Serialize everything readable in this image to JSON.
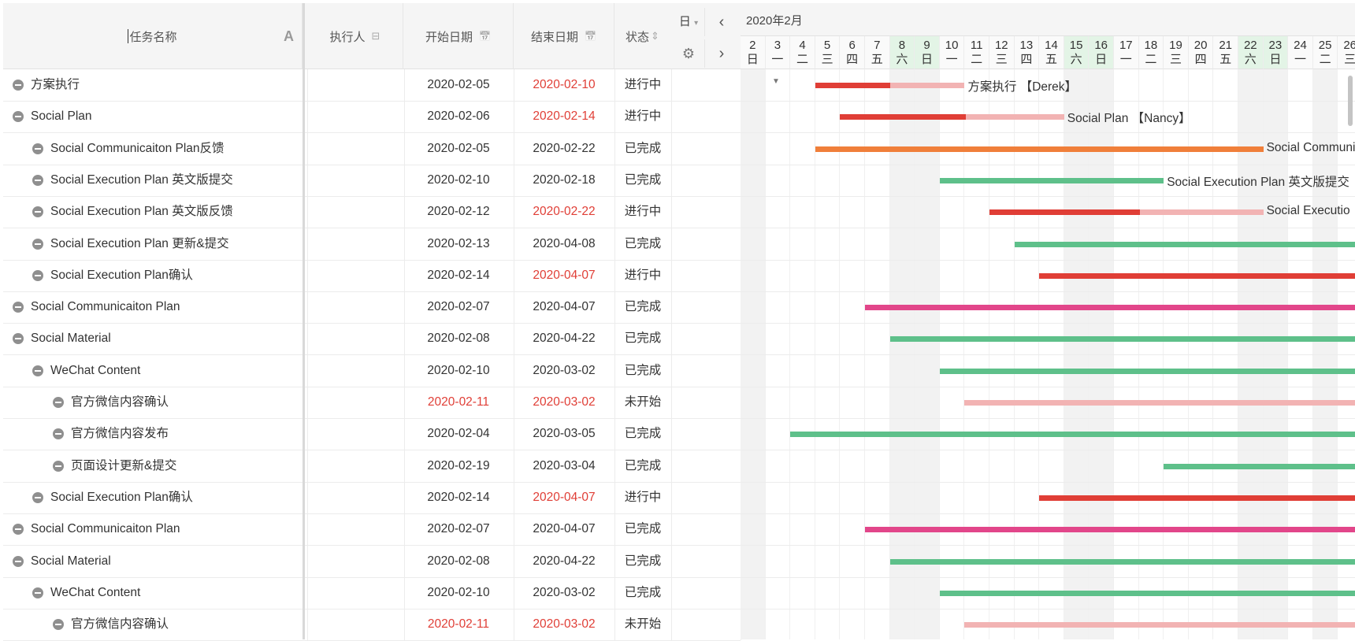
{
  "columns": {
    "name": "任务名称",
    "owner": "执行人",
    "start": "开始日期",
    "end": "结束日期",
    "status": "状态"
  },
  "icons": {
    "text_format": "A",
    "owner": "⊟",
    "calendar": "📅",
    "sort": "⇕",
    "view_caret": "▾",
    "prev": "‹",
    "next": "›",
    "gear": "⚙",
    "gantt_down": "▼"
  },
  "controls": {
    "view_label": "日"
  },
  "colors": {
    "in_progress": "#e03e36",
    "in_progress_light": "#f2b3b3",
    "done_green": "#5ec08a",
    "orange": "#f07f3a",
    "pink": "#e2468a"
  },
  "gantt": {
    "month_label": "2020年2月",
    "days": [
      {
        "d": "2",
        "w": "日"
      },
      {
        "d": "3",
        "w": "一"
      },
      {
        "d": "4",
        "w": "二"
      },
      {
        "d": "5",
        "w": "三"
      },
      {
        "d": "6",
        "w": "四"
      },
      {
        "d": "7",
        "w": "五"
      },
      {
        "d": "8",
        "w": "六"
      },
      {
        "d": "9",
        "w": "日"
      },
      {
        "d": "10",
        "w": "一"
      },
      {
        "d": "11",
        "w": "二"
      },
      {
        "d": "12",
        "w": "三"
      },
      {
        "d": "13",
        "w": "四"
      },
      {
        "d": "14",
        "w": "五"
      },
      {
        "d": "15",
        "w": "六"
      },
      {
        "d": "16",
        "w": "日"
      },
      {
        "d": "17",
        "w": "一"
      },
      {
        "d": "18",
        "w": "二"
      },
      {
        "d": "19",
        "w": "三"
      },
      {
        "d": "20",
        "w": "四"
      },
      {
        "d": "21",
        "w": "五"
      },
      {
        "d": "22",
        "w": "六"
      },
      {
        "d": "23",
        "w": "日"
      },
      {
        "d": "24",
        "w": "一"
      },
      {
        "d": "25",
        "w": "二"
      },
      {
        "d": "26",
        "w": "三"
      }
    ],
    "weekend_days": [
      "8",
      "9",
      "15",
      "16",
      "22",
      "23"
    ]
  },
  "tasks": [
    {
      "name": "方案执行",
      "level": 0,
      "start": "2020-02-05",
      "end": "2020-02-10",
      "end_red": true,
      "start_red": false,
      "status": "进行中",
      "label": "方案执行 【Derek】",
      "progress": 0.5
    },
    {
      "name": "Social Plan",
      "level": 0,
      "start": "2020-02-06",
      "end": "2020-02-14",
      "end_red": true,
      "start_red": false,
      "status": "进行中",
      "label": "Social Plan 【Nancy】",
      "progress": 0.56
    },
    {
      "name": "Social Communicaiton Plan反馈",
      "level": 1,
      "start": "2020-02-05",
      "end": "2020-02-22",
      "end_red": false,
      "start_red": false,
      "status": "已完成",
      "label": "Social Communi",
      "color": "orange"
    },
    {
      "name": "Social Execution Plan 英文版提交",
      "level": 1,
      "start": "2020-02-10",
      "end": "2020-02-18",
      "end_red": false,
      "start_red": false,
      "status": "已完成",
      "label": "Social Execution Plan 英文版提交",
      "color": "green"
    },
    {
      "name": "Social Execution Plan 英文版反馈",
      "level": 1,
      "start": "2020-02-12",
      "end": "2020-02-22",
      "end_red": true,
      "start_red": false,
      "status": "进行中",
      "label": "Social Executio",
      "progress": 0.55
    },
    {
      "name": "Social Execution Plan 更新&提交",
      "level": 1,
      "start": "2020-02-13",
      "end": "2020-04-08",
      "end_red": false,
      "start_red": false,
      "status": "已完成",
      "label": "",
      "color": "green"
    },
    {
      "name": "Social Execution Plan确认",
      "level": 1,
      "start": "2020-02-14",
      "end": "2020-04-07",
      "end_red": true,
      "start_red": false,
      "status": "进行中",
      "label": "",
      "color": "red"
    },
    {
      "name": "Social Communicaiton Plan",
      "level": 0,
      "start": "2020-02-07",
      "end": "2020-04-07",
      "end_red": false,
      "start_red": false,
      "status": "已完成",
      "label": "",
      "color": "pink"
    },
    {
      "name": "Social Material",
      "level": 0,
      "start": "2020-02-08",
      "end": "2020-04-22",
      "end_red": false,
      "start_red": false,
      "status": "已完成",
      "label": "",
      "color": "green"
    },
    {
      "name": "WeChat Content",
      "level": 1,
      "start": "2020-02-10",
      "end": "2020-03-02",
      "end_red": false,
      "start_red": false,
      "status": "已完成",
      "label": "",
      "color": "green"
    },
    {
      "name": "官方微信内容确认",
      "level": 2,
      "start": "2020-02-11",
      "end": "2020-03-02",
      "end_red": true,
      "start_red": true,
      "status": "未开始",
      "label": "",
      "color": "light"
    },
    {
      "name": "官方微信内容发布",
      "level": 2,
      "start": "2020-02-04",
      "end": "2020-03-05",
      "end_red": false,
      "start_red": false,
      "status": "已完成",
      "label": "",
      "color": "green"
    },
    {
      "name": "页面设计更新&提交",
      "level": 2,
      "start": "2020-02-19",
      "end": "2020-03-04",
      "end_red": false,
      "start_red": false,
      "status": "已完成",
      "label": "",
      "color": "green"
    },
    {
      "name": "Social Execution Plan确认",
      "level": 1,
      "start": "2020-02-14",
      "end": "2020-04-07",
      "end_red": true,
      "start_red": false,
      "status": "进行中",
      "label": "",
      "color": "red"
    },
    {
      "name": "Social Communicaiton Plan",
      "level": 0,
      "start": "2020-02-07",
      "end": "2020-04-07",
      "end_red": false,
      "start_red": false,
      "status": "已完成",
      "label": "",
      "color": "pink"
    },
    {
      "name": "Social Material",
      "level": 0,
      "start": "2020-02-08",
      "end": "2020-04-22",
      "end_red": false,
      "start_red": false,
      "status": "已完成",
      "label": "",
      "color": "green"
    },
    {
      "name": "WeChat Content",
      "level": 1,
      "start": "2020-02-10",
      "end": "2020-03-02",
      "end_red": false,
      "start_red": false,
      "status": "已完成",
      "label": "",
      "color": "green"
    },
    {
      "name": "官方微信内容确认",
      "level": 2,
      "start": "2020-02-11",
      "end": "2020-03-02",
      "end_red": true,
      "start_red": true,
      "status": "未开始",
      "label": "",
      "color": "light"
    }
  ]
}
